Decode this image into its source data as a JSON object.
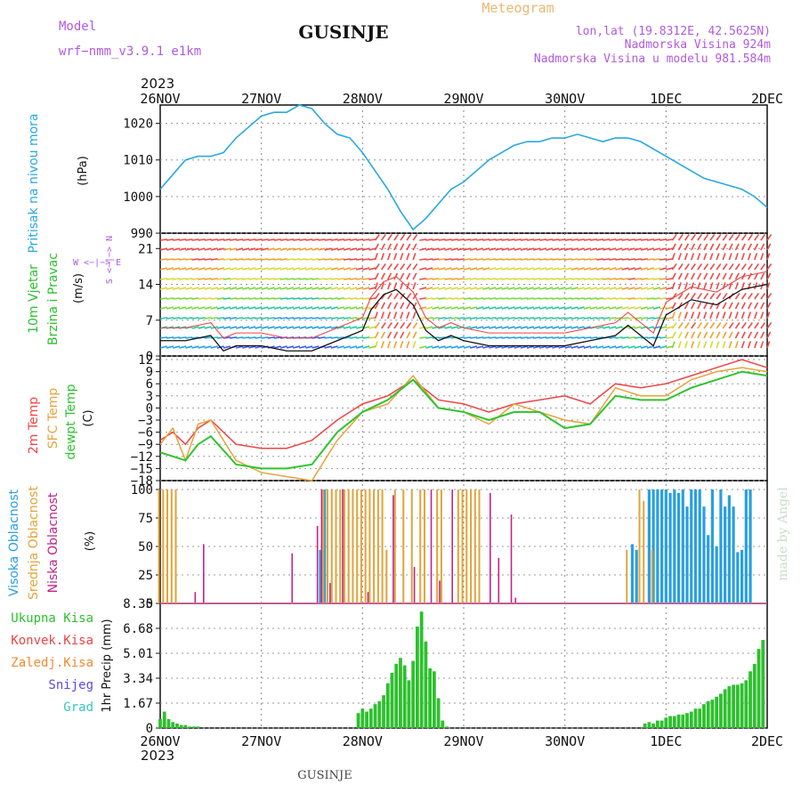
{
  "header": {
    "model_label": "Model",
    "model_name": "wrf−nmm_v3.9.1  e1km",
    "title": "GUSINJE",
    "meteogram_label": "Meteogram",
    "lonlat": "lon,lat (19.8312E, 42.5625N)",
    "elevation": "Nadmorska Visina 924m",
    "elevation_model": "Nadmorska Visina u modelu 981.584m",
    "footer_title": "GUSINJE",
    "credit": "made by Angel"
  },
  "colors": {
    "pressure": "#29a8e0",
    "wind_label": "#2ec02e",
    "temp2m": "#ee4444",
    "sfc_temp": "#e8a23a",
    "dewpoint": "#2ec42e",
    "cloud_high": "#2a9fe0",
    "cloud_mid": "#e0a43a",
    "cloud_low": "#c0248a",
    "precip_total": "#2ec02e",
    "conv": "#ee4444",
    "freezing": "#f08a30",
    "snow": "#5a4ae0",
    "hail": "#3ac4c4",
    "purple_text": "#b05ae0"
  },
  "x_axis": {
    "year": "2023",
    "ticks": [
      "26NOV",
      "27NOV",
      "28NOV",
      "29NOV",
      "30NOV",
      "1DEC",
      "2DEC"
    ]
  },
  "panels": {
    "pressure": {
      "label": "Pritisak na nivou mora",
      "unit": "(hPa)",
      "ticks": [
        "990",
        "1000",
        "1010",
        "1020"
      ]
    },
    "wind": {
      "label1": "10m Vjetar",
      "label2": "Brzina i Pravac",
      "unit": "(m/s)",
      "ticks": [
        "0",
        "7",
        "14",
        "21"
      ],
      "compass": "W <−|−> E",
      "compass_v": "S <−|−> N"
    },
    "temp": {
      "label1": "2m Temp",
      "label2": "SFC Temp",
      "label3": "dewpt Temp",
      "unit": "(C)",
      "ticks": [
        "−18",
        "−15",
        "−12",
        "−9",
        "−6",
        "−3",
        "0",
        "3",
        "6",
        "9",
        "12"
      ]
    },
    "cloud": {
      "label1": "Visoka Oblacnost",
      "label2": "Srednja Oblacnost",
      "label3": "Niska Oblacnost",
      "unit": "(%)",
      "ticks": [
        "0",
        "25",
        "50",
        "75",
        "100"
      ]
    },
    "precip": {
      "labels": [
        "Ukupna Kisa",
        "Konvek.Kisa",
        "Zaledj.Kisa",
        "Snijeg",
        "Grad"
      ],
      "unit": "1hr Precip (mm)",
      "ticks": [
        "0",
        "1.67",
        "3.34",
        "5.01",
        "6.68",
        "8.35"
      ]
    }
  },
  "chart_data": [
    {
      "type": "line",
      "series": [
        {
          "name": "Pritisak na nivou mora",
          "x": [
            0,
            3,
            6,
            9,
            12,
            15,
            18,
            21,
            24,
            27,
            30,
            33,
            36,
            39,
            42,
            45,
            48,
            51,
            54,
            57,
            60,
            63,
            66,
            69,
            72,
            75,
            78,
            81,
            84,
            87,
            90,
            93,
            96,
            99,
            102,
            105,
            108,
            111,
            114,
            117,
            120,
            123,
            126,
            129,
            132,
            135,
            138,
            141,
            144
          ],
          "values": [
            1002,
            1006,
            1010,
            1011,
            1011,
            1012,
            1016,
            1019,
            1022,
            1023,
            1023,
            1025,
            1024,
            1020,
            1017,
            1016,
            1012,
            1007,
            1002,
            996,
            991,
            994,
            998,
            1002,
            1004,
            1007,
            1010,
            1012,
            1014,
            1015,
            1015,
            1016,
            1016,
            1017,
            1016,
            1015,
            1016,
            1016,
            1015,
            1013,
            1011,
            1009,
            1007,
            1005,
            1004,
            1003,
            1002,
            1000,
            997
          ]
        }
      ],
      "ylim": [
        990,
        1025
      ]
    },
    {
      "type": "line",
      "series": [
        {
          "name": "Brzina i Pravac",
          "x": [
            0,
            6,
            12,
            15,
            18,
            24,
            30,
            36,
            42,
            48,
            50,
            53,
            56,
            60,
            63,
            66,
            69,
            72,
            78,
            84,
            90,
            96,
            102,
            108,
            111,
            114,
            117,
            120,
            126,
            132,
            138,
            144
          ],
          "values": [
            3,
            3,
            4,
            1,
            2,
            2,
            1,
            1,
            3,
            5,
            9,
            12,
            13,
            10,
            5,
            3,
            4,
            3,
            2,
            2,
            2,
            2,
            3,
            4,
            6,
            4,
            2,
            8,
            11,
            10,
            13,
            14
          ]
        }
      ],
      "ylim": [
        0,
        24
      ]
    },
    {
      "type": "line",
      "series": [
        {
          "name": "2m Temp",
          "x": [
            0,
            3,
            6,
            9,
            12,
            18,
            24,
            30,
            36,
            42,
            48,
            54,
            60,
            66,
            72,
            78,
            84,
            90,
            96,
            102,
            108,
            114,
            120,
            126,
            132,
            138,
            144
          ],
          "values": [
            -8,
            -6,
            -9,
            -5,
            -3,
            -9,
            -10,
            -10,
            -8,
            -3,
            1,
            3,
            7,
            2,
            1,
            -1,
            1,
            2,
            3,
            1,
            6,
            5,
            6,
            8,
            10,
            12,
            10
          ]
        },
        {
          "name": "SFC Temp",
          "x": [
            0,
            3,
            6,
            9,
            12,
            18,
            24,
            30,
            36,
            42,
            48,
            54,
            60,
            66,
            72,
            78,
            84,
            90,
            96,
            102,
            108,
            114,
            120,
            126,
            132,
            138,
            144
          ],
          "values": [
            -9,
            -5,
            -13,
            -4,
            -3,
            -13,
            -16,
            -17,
            -18,
            -8,
            -1,
            1,
            8,
            0,
            -1,
            -4,
            1,
            -1,
            -3,
            -4,
            5,
            3,
            3,
            7,
            9,
            10,
            9
          ]
        },
        {
          "name": "dewpt Temp",
          "x": [
            0,
            3,
            6,
            9,
            12,
            18,
            24,
            30,
            36,
            42,
            48,
            54,
            60,
            66,
            72,
            78,
            84,
            90,
            96,
            102,
            108,
            114,
            120,
            126,
            132,
            138,
            144
          ],
          "values": [
            -11,
            -12,
            -13,
            -9,
            -7,
            -14,
            -15,
            -15,
            -14,
            -6,
            -1,
            2,
            7,
            0,
            -1,
            -3,
            -1,
            -1,
            -5,
            -4,
            3,
            2,
            2,
            5,
            7,
            9,
            8
          ]
        }
      ],
      "ylim": [
        -18,
        12
      ]
    },
    {
      "type": "bar",
      "series": [
        {
          "name": "Visoka Oblacnost",
          "x": [
            38,
            39,
            112,
            113,
            116,
            117,
            118,
            119,
            120,
            121,
            122,
            123,
            124,
            125,
            126,
            127,
            128,
            129,
            130,
            131,
            132,
            133,
            134,
            135,
            136,
            137,
            138,
            139,
            140
          ],
          "values": [
            47,
            100,
            52,
            47,
            100,
            100,
            100,
            100,
            100,
            97,
            100,
            97,
            100,
            85,
            100,
            100,
            100,
            85,
            60,
            100,
            50,
            100,
            85,
            95,
            85,
            45,
            47,
            100,
            100
          ]
        },
        {
          "name": "Srednja Oblacnost",
          "x": [
            0,
            1,
            2,
            3,
            4,
            39,
            40,
            41,
            42,
            43,
            44,
            45,
            46,
            47,
            48,
            49,
            50,
            51,
            52,
            53,
            54,
            56,
            58,
            60,
            62,
            63,
            66,
            67,
            71,
            72,
            73,
            74,
            75,
            76,
            111,
            114,
            115,
            117
          ],
          "values": [
            100,
            100,
            100,
            100,
            100,
            100,
            100,
            100,
            100,
            100,
            100,
            100,
            100,
            100,
            100,
            100,
            100,
            100,
            100,
            100,
            47,
            100,
            100,
            100,
            100,
            100,
            100,
            100,
            100,
            100,
            100,
            100,
            100,
            100,
            47,
            100,
            90,
            47
          ]
        },
        {
          "name": "Niska Oblacnost",
          "x": [
            8,
            10,
            31,
            37,
            38,
            40,
            43,
            49,
            55,
            60,
            64,
            66,
            69,
            78,
            80,
            83,
            84
          ],
          "values": [
            10,
            52,
            44,
            68,
            100,
            18,
            100,
            10,
            95,
            32,
            100,
            20,
            100,
            97,
            40,
            78,
            5
          ]
        }
      ],
      "ylim": [
        0,
        100
      ]
    },
    {
      "type": "bar",
      "series": [
        {
          "name": "Ukupna Kisa",
          "x": [
            0,
            1,
            2,
            3,
            4,
            5,
            6,
            7,
            8,
            9,
            47,
            48,
            49,
            50,
            51,
            52,
            53,
            54,
            55,
            56,
            57,
            58,
            59,
            60,
            61,
            62,
            63,
            64,
            65,
            66,
            67,
            68,
            115,
            116,
            117,
            118,
            119,
            120,
            121,
            122,
            123,
            124,
            125,
            126,
            127,
            128,
            129,
            130,
            131,
            132,
            133,
            134,
            135,
            136,
            137,
            138,
            139,
            140,
            141,
            142,
            143
          ],
          "values": [
            0.6,
            1.1,
            0.6,
            0.4,
            0.3,
            0.2,
            0.2,
            0.1,
            0.1,
            0.1,
            1.0,
            1.3,
            1.1,
            1.3,
            1.6,
            1.8,
            2.2,
            3.0,
            3.7,
            4.3,
            4.7,
            4.2,
            3.2,
            4.5,
            6.8,
            7.8,
            5.8,
            4.0,
            3.8,
            2.0,
            0.5,
            0.1,
            0.3,
            0.4,
            0.3,
            0.5,
            0.5,
            0.7,
            0.8,
            0.8,
            0.9,
            0.9,
            1.0,
            1.1,
            1.3,
            1.3,
            1.6,
            1.8,
            1.9,
            2.1,
            2.3,
            2.6,
            2.8,
            2.9,
            2.9,
            3.0,
            3.2,
            3.8,
            4.3,
            5.3,
            5.9
          ]
        }
      ],
      "ylim": [
        0,
        8.35
      ]
    }
  ]
}
